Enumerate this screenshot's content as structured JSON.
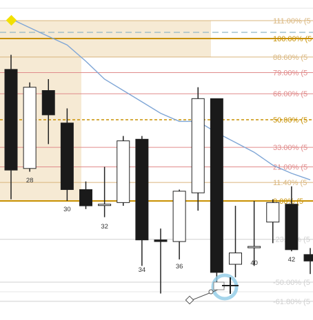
{
  "chart": {
    "fib_levels": [
      {
        "label": "111.00% (5",
        "level": 111.0,
        "color": "#d9b57c",
        "style": "thin"
      },
      {
        "label": "100.00% (5",
        "level": 100.0,
        "color": "#c89000",
        "style": "thick"
      },
      {
        "label": "88.60% (5",
        "level": 88.6,
        "color": "#d9b57c",
        "style": "thin"
      },
      {
        "label": "79.00% (5",
        "level": 79.0,
        "color": "#e08a8a",
        "style": "thin"
      },
      {
        "label": "66.00% (5",
        "level": 66.0,
        "color": "#e08a8a",
        "style": "thin"
      },
      {
        "label": "50.00% (5",
        "level": 50.0,
        "color": "#c89000",
        "style": "dashed"
      },
      {
        "label": "33.00% (5",
        "level": 33.0,
        "color": "#e08a8a",
        "style": "thin"
      },
      {
        "label": "21.00% (5",
        "level": 21.0,
        "color": "#e08a8a",
        "style": "thin"
      },
      {
        "label": "11.40% (5",
        "level": 11.4,
        "color": "#d9b57c",
        "style": "thin"
      },
      {
        "label": "0.00% (5",
        "level": 0.0,
        "color": "#c89000",
        "style": "thick"
      },
      {
        "label": "-23.60% (5",
        "level": -23.6,
        "color": "#cfcfcf",
        "style": "thin"
      },
      {
        "label": "-50.00% (5",
        "level": -50.0,
        "color": "#cfcfcf",
        "style": "thin"
      },
      {
        "label": "-61.80% (5",
        "level": -61.8,
        "color": "#cfcfcf",
        "style": "thin"
      }
    ],
    "bar_labels": [
      "28",
      "30",
      "32",
      "34",
      "36",
      "40",
      "42"
    ],
    "candles": [
      {
        "bar": 27,
        "open": 81,
        "close": 19,
        "high": 90,
        "low": 1,
        "bull": false
      },
      {
        "bar": 28,
        "open": 20,
        "close": 70,
        "high": 73,
        "low": 18,
        "bull": true
      },
      {
        "bar": 29,
        "open": 68,
        "close": 53,
        "high": 75,
        "low": 35,
        "bull": false
      },
      {
        "bar": 30,
        "open": 48,
        "close": 7,
        "high": 57,
        "low": 0,
        "bull": false
      },
      {
        "bar": 31,
        "open": 7,
        "close": -3,
        "high": 12,
        "low": -5,
        "bull": false
      },
      {
        "bar": 32,
        "open": -2,
        "close": -2,
        "high": 21,
        "low": -10,
        "bull": true
      },
      {
        "bar": 33,
        "open": -1,
        "close": 37,
        "high": 40,
        "low": -3,
        "bull": true
      },
      {
        "bar": 34,
        "open": 38,
        "close": -24,
        "high": 40,
        "low": -40,
        "bull": false
      },
      {
        "bar": 35,
        "open": -24,
        "close": -25,
        "high": -17,
        "low": -57,
        "bull": false
      },
      {
        "bar": 36,
        "open": -25,
        "close": 6,
        "high": 7,
        "low": -36,
        "bull": true
      },
      {
        "bar": 37,
        "open": 5,
        "close": 63,
        "high": 70,
        "low": -6,
        "bull": true
      },
      {
        "bar": 38,
        "open": 63,
        "close": -44,
        "high": 63,
        "low": -54,
        "bull": false
      },
      {
        "bar": 39,
        "open": -39,
        "close": -32,
        "high": -3,
        "low": -47,
        "bull": true
      },
      {
        "bar": 40,
        "open": -28,
        "close": -28,
        "high": 0,
        "low": -40,
        "bull": true
      },
      {
        "bar": 41,
        "open": -13,
        "close": -1,
        "high": 1,
        "low": -26,
        "bull": true
      },
      {
        "bar": 42,
        "open": -2,
        "close": -30,
        "high": 9,
        "low": -31,
        "bull": false
      },
      {
        "bar": 43,
        "open": -33,
        "close": -37,
        "high": -29,
        "low": -45,
        "bull": false
      }
    ],
    "moving_average": [
      {
        "bar": 27.2,
        "value": 111
      },
      {
        "bar": 28.5,
        "value": 104
      },
      {
        "bar": 30,
        "value": 96
      },
      {
        "bar": 31,
        "value": 86
      },
      {
        "bar": 32,
        "value": 75
      },
      {
        "bar": 33,
        "value": 68
      },
      {
        "bar": 34,
        "value": 61
      },
      {
        "bar": 35,
        "value": 54
      },
      {
        "bar": 36,
        "value": 49
      },
      {
        "bar": 37,
        "value": 49
      },
      {
        "bar": 38,
        "value": 42
      },
      {
        "bar": 39,
        "value": 36
      },
      {
        "bar": 40,
        "value": 30
      },
      {
        "bar": 41,
        "value": 22
      },
      {
        "bar": 42,
        "value": 17
      },
      {
        "bar": 43,
        "value": 13
      }
    ],
    "colors": {
      "bull_body": "#ffffff",
      "bear_body": "#1a1a1a",
      "wick": "#222222",
      "ma_line": "#7fa6d6",
      "zone_fill": "#f6ead4",
      "top_dashed": "#8fb8c8",
      "marker": "#f2e000",
      "cursor_ring": "#8ecae6"
    }
  }
}
